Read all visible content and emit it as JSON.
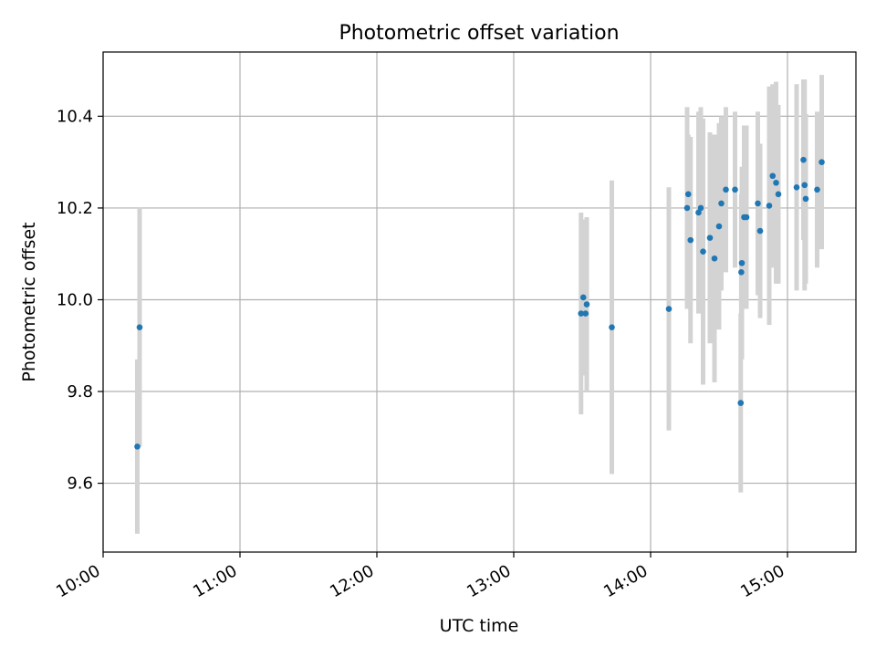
{
  "chart_data": {
    "type": "scatter",
    "title": "Photometric offset variation",
    "xlabel": "UTC time",
    "ylabel": "Photometric offset",
    "x_axis_type": "time",
    "xlim": [
      "10:00",
      "15:30"
    ],
    "ylim": [
      9.45,
      10.54
    ],
    "xticks": [
      "10:00",
      "11:00",
      "12:00",
      "13:00",
      "14:00",
      "15:00"
    ],
    "yticks": [
      9.6,
      9.8,
      10.0,
      10.2,
      10.4
    ],
    "grid": true,
    "marker_color": "#1f77b4",
    "errorbar_color": "#d3d3d3",
    "series": [
      {
        "points": [
          {
            "x": "10:15:00",
            "y": 9.68,
            "err": 0.19
          },
          {
            "x": "10:16:00",
            "y": 9.94,
            "err": 0.26
          },
          {
            "x": "13:29:30",
            "y": 9.97,
            "err": 0.22
          },
          {
            "x": "13:30:30",
            "y": 10.005,
            "err": 0.17
          },
          {
            "x": "13:31:30",
            "y": 9.97,
            "err": 0.12
          },
          {
            "x": "13:32:00",
            "y": 9.99,
            "err": 0.19
          },
          {
            "x": "13:43:00",
            "y": 9.94,
            "err": 0.32
          },
          {
            "x": "14:08:00",
            "y": 9.98,
            "err": 0.265
          },
          {
            "x": "14:16:00",
            "y": 10.2,
            "err": 0.22
          },
          {
            "x": "14:16:30",
            "y": 10.23,
            "err": 0.13
          },
          {
            "x": "14:17:30",
            "y": 10.13,
            "err": 0.225
          },
          {
            "x": "14:21:00",
            "y": 10.19,
            "err": 0.22
          },
          {
            "x": "14:22:00",
            "y": 10.2,
            "err": 0.22
          },
          {
            "x": "14:23:00",
            "y": 10.105,
            "err": 0.29
          },
          {
            "x": "14:26:00",
            "y": 10.135,
            "err": 0.23
          },
          {
            "x": "14:28:00",
            "y": 10.09,
            "err": 0.27
          },
          {
            "x": "14:30:00",
            "y": 10.16,
            "err": 0.225
          },
          {
            "x": "14:31:00",
            "y": 10.21,
            "err": 0.19
          },
          {
            "x": "14:33:00",
            "y": 10.24,
            "err": 0.18
          },
          {
            "x": "14:37:00",
            "y": 10.24,
            "err": 0.17
          },
          {
            "x": "14:39:30",
            "y": 9.775,
            "err": 0.195
          },
          {
            "x": "14:39:45",
            "y": 10.06,
            "err": 0.17
          },
          {
            "x": "14:40:00",
            "y": 10.08,
            "err": 0.21
          },
          {
            "x": "14:41:00",
            "y": 10.18,
            "err": 0.2
          },
          {
            "x": "14:42:00",
            "y": 10.18,
            "err": 0.2
          },
          {
            "x": "14:47:00",
            "y": 10.21,
            "err": 0.2
          },
          {
            "x": "14:48:00",
            "y": 10.15,
            "err": 0.19
          },
          {
            "x": "14:52:00",
            "y": 10.205,
            "err": 0.26
          },
          {
            "x": "14:53:30",
            "y": 10.27,
            "err": 0.2
          },
          {
            "x": "14:55:00",
            "y": 10.255,
            "err": 0.22
          },
          {
            "x": "14:56:00",
            "y": 10.23,
            "err": 0.195
          },
          {
            "x": "15:04:00",
            "y": 10.245,
            "err": 0.225
          },
          {
            "x": "15:07:00",
            "y": 10.305,
            "err": 0.175
          },
          {
            "x": "15:07:30",
            "y": 10.25,
            "err": 0.23
          },
          {
            "x": "15:08:00",
            "y": 10.22,
            "err": 0.185
          },
          {
            "x": "15:13:00",
            "y": 10.24,
            "err": 0.17
          },
          {
            "x": "15:15:00",
            "y": 10.3,
            "err": 0.19
          }
        ]
      }
    ]
  }
}
